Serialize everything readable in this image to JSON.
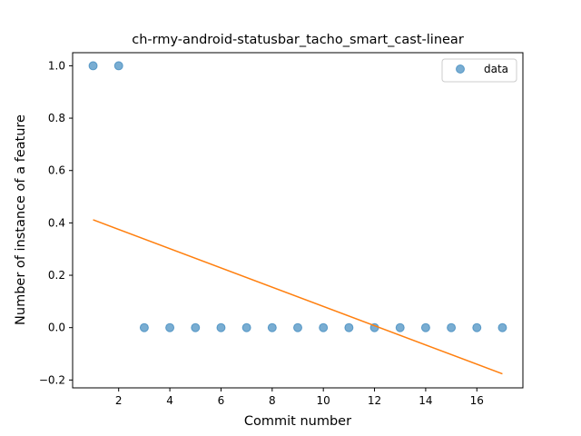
{
  "chart_data": {
    "type": "scatter",
    "title": "ch-rmy-android-statusbar_tacho_smart_cast-linear",
    "xlabel": "Commit number",
    "ylabel": "Number of instance of a feature",
    "xlim": [
      0.2,
      17.8
    ],
    "ylim": [
      -0.23,
      1.05
    ],
    "xticks": [
      2,
      4,
      6,
      8,
      10,
      12,
      14,
      16
    ],
    "yticks": [
      -0.2,
      0.0,
      0.2,
      0.4,
      0.6,
      0.8,
      1.0
    ],
    "series": [
      {
        "name": "data",
        "kind": "scatter",
        "color": "#1f77b4",
        "x": [
          1,
          2,
          3,
          4,
          5,
          6,
          7,
          8,
          9,
          10,
          11,
          12,
          13,
          14,
          15,
          16,
          17
        ],
        "y": [
          1,
          1,
          0,
          0,
          0,
          0,
          0,
          0,
          0,
          0,
          0,
          0,
          0,
          0,
          0,
          0,
          0
        ]
      },
      {
        "kind": "line",
        "color": "#ff7f0e",
        "x": [
          1,
          17
        ],
        "y": [
          0.4118,
          -0.1765
        ]
      }
    ],
    "grid": false,
    "legend": {
      "position": "top-right",
      "entries": [
        "data"
      ]
    }
  }
}
